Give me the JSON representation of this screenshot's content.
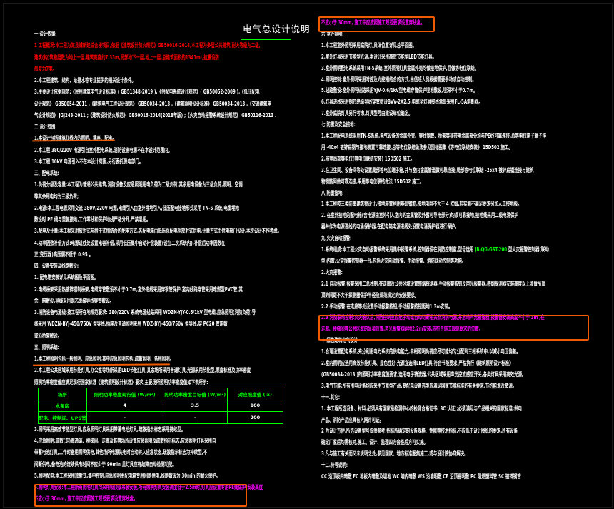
{
  "title": "电气总设计说明",
  "colors": {
    "background": "#000000",
    "text": "#ffffff",
    "highlight_red": "#ff0000",
    "highlight_magenta": "#ff00ff",
    "table_green": "#00ff00",
    "annotation_orange": "#f05a00"
  },
  "left_lines": [
    {
      "text": "一.设计依据:",
      "color": "#ffffff"
    },
    {
      "text": "1  工程概况:本工程为某县城新建综合楼项目,依据《建筑设计防火规范》GB50016-2014,本工程为多层公共建筑,耐火等级为二级,",
      "color": "#ff0000"
    },
    {
      "text": "建筑(构)筑物层数为地上一层,建筑高度约7.33m,局部地下一层,地上一层,总建筑面积约1341m²,抗震设防",
      "color": "#ff0000"
    },
    {
      "text": "烈度为7度。",
      "color": "#ff0000"
    },
    {
      "text": "2.本工程建筑、结构、给排水等专业提供的相关设计条件。",
      "color": "#ffffff"
    },
    {
      "text": "3.主要设计依据规范:《民用建筑电气设计标准》(          GB51348-2019          ),《供配电系统设计规范》(          GB50052-2009          ),《低压配电",
      "color": "#ffffff"
    },
    {
      "text": "设计规范》     GB50054-2011      ,《建筑电气工程设计规范》     GB50034-2013      ,《建筑照明设计标准》     GB50034-2013      ,《交通建筑电",
      "color": "#ffffff"
    },
    {
      "text": "气设计规范》     JGJ243-2011     ;《建筑设计防火规范》     GB50016-2014(2018年版)     ;《火灾自动报警系统设计规范》     GB50116-2013     .",
      "color": "#ffffff"
    },
    {
      "text": "二.设计范围:",
      "color": "#ffffff"
    },
    {
      "text": "1.本设计包括建筑红线内的照明、插座、配电。",
      "color": "#ffffff"
    },
    {
      "text": "2.本工程   380/220V   电源引自室外配电系统,消防设施电源不在本设计范围内。",
      "color": "#ffffff"
    },
    {
      "text": "3.本工程   10kV   电源引入不在本设计范围,另行委托供电部门。",
      "color": "#ffffff"
    },
    {
      "text": "三、配电系统:",
      "color": "#ffffff"
    },
    {
      "text": "1.负荷分级及容量:本工程为普通公共建筑,消防设备及应急照明用电负荷为二级负荷,其余用电设备为三级负荷,照明、空调",
      "color": "#ffffff"
    },
    {
      "text": "等其余用电均为三级负荷;",
      "color": "#ffffff"
    },
    {
      "text": "2.电源:本工程电源采用交流        380V/220V        电源,电缆引入由室外埋地引入,低压配电接地形式采用              TN-S     系统,电缆埋地",
      "color": "#ffffff"
    },
    {
      "text": "敷设时    PE    线与重复接地,工作零线和保护地线严格分开,严禁混用。",
      "color": "#ffffff"
    },
    {
      "text": "3.配电及计量:本工程采用放射式与树干式相结合的配电方式,各配电箱由低压总配电柜放射式供电,计量方式由供电部门设计,本次设计不作考虑。",
      "color": "#ffffff"
    },
    {
      "text": "4.功率因数补偿方式:电源进线处设置电容补偿,采用低压集中自动补偿装置(设在二次系统内),补偿后功率因数在",
      "color": "#ffffff"
    },
    {
      "text": "正(变压器)高压侧不低于                                0.95  。",
      "color": "#ffffff"
    },
    {
      "text": "四、设备安装及线路敷设:",
      "color": "#ffffff"
    },
    {
      "text": "1.   配电箱安装详见系统图及平面图。",
      "color": "#ffffff"
    },
    {
      "text": "2.电缆桥架采用热镀锌钢制桥架,电缆穿管敷设不小于0.7m,室外进线采用穿钢管保护,室内线路穿管采用难燃型PVC管,其",
      "color": "#ffffff"
    },
    {
      "text": "余、暗敷设,导线采用铜芯绝缘导线穿管敷设。",
      "color": "#ffffff"
    },
    {
      "text": "3.消防设备电源线:按工程所在地规范要求:        380/220V        系统电源线路采用      WDZN-YJY-0.6/1kV      型电缆,应急照明(消防负荷)导",
      "color": "#ffffff"
    },
    {
      "text": "线采用   WDZN-BYJ-450/750V     型导线,插座及普通照明采用     WDZ-BYJ-450/750V     型导线,穿   PC20   管暗敷",
      "color": "#ffffff"
    },
    {
      "text": "或沿桥架敷设。",
      "color": "#ffffff"
    },
    {
      "text": "五、照明系统:",
      "color": "#ffffff"
    },
    {
      "text": "1.本工程照明包括一般照明、应急照明;其中应急照明包括:疏散照明、备用照明。",
      "color": "#ffffff"
    },
    {
      "text": "2.本工程公共区域采用节能灯具,办公室等场所采用LED节能灯具,其余场所采用普通灯具,光源采用节能型,照度标准及功率密度",
      "color": "#ffffff"
    },
    {
      "text": "照明功率密度值应满足现行国家标准《建筑照明设计标准》要求,主要场所照明功率密度值如下表所示:",
      "color": "#ffffff"
    }
  ],
  "lpd_table": {
    "headers": [
      "场所",
      "照明功率密度现行值    (W/m²)",
      "照明功率密度目标值    (W/m²)",
      "对应照度值    (lx)"
    ],
    "rows": [
      [
        "水泵房",
        "4",
        "3.5",
        "100"
      ],
      [
        "配电、控制间、UPS室",
        "-",
        "-",
        "200"
      ]
    ]
  },
  "left_lines_after": [
    {
      "text": "3.照明采用高效节能型灯具,应急照明灯具采用带蓄电池灯具,疏散指示标志采用持续型。",
      "color": "#ffffff"
    },
    {
      "text": "4.应急照明:疏散(走)廊通道、楼梯间、走廊及其等场所设置应急照明及疏散指示标志,应急照明灯具采用自",
      "color": "#ffffff"
    },
    {
      "text": "带蓄电池灯具,工作时备用照明供电,其他场所电源失电时自动转入应急状态,疏散指示标志为持续型,不",
      "color": "#ffffff"
    },
    {
      "text": "间断供电,备电池的连续供电时间不应少于                               90min     且灯具应有故障自动检测功能。",
      "color": "#ffffff"
    },
    {
      "text": "5.照明配电:本工程采用放射式,集中控制,应急照明由配电箱专用回路供电,线路敷设为                       30min     的耐火保护。",
      "color": "#ffffff"
    },
    {
      "text": "6.照明灯具安装:本工程所有照明灯具均采用吸顶或吊装安装,所有照明灯具安装高度低于2.5m时,灯具应设置专用PE线保护,安装高度",
      "color": "#ff00ff"
    },
    {
      "text": "不应小于      30mm,      施工中应按照施工规范要求设置穿线盒。",
      "color": "#ff00ff"
    }
  ],
  "right_lines": [
    {
      "text": "不应小于      30mm,      施工中应按照施工规范要求设置穿线盒。",
      "color": "#ff00ff"
    },
    {
      "text": "六.室外照明:",
      "color": "#ffffff"
    },
    {
      "text": "1.本工程室外照明采用庭院灯,具体位置详见总平面图。",
      "color": "#ffffff"
    },
    {
      "text": "2.室外灯具采用节能型光源,本设计采用高效节能型LED节能灯具。",
      "color": "#ffffff"
    },
    {
      "text": "3.室外照明配电系统采用TN-S系统,室外照明灯具金属外壳均做接地保护,且做等电位联结。",
      "color": "#ffffff"
    },
    {
      "text": "4.照明控制:室外照明采用时控及光控相结合的方式,由值班人员根据需要手动或自动控制。",
      "color": "#ffffff"
    },
    {
      "text": "5.线路敷设:室外照明线路采用YJV-0.6/1kV型电缆穿管保护埋地敷设,埋深不小于0.7m。",
      "color": "#ffffff"
    },
    {
      "text": "6.灯具进线采用铜芯绝缘导线穿管敷设BVV-2X2.5,电缆至灯具接线盒处采用FL-5A熔断器。",
      "color": "#ffffff"
    },
    {
      "text": "7.室外庭院灯具另行考虑,灯具型号由建设单位确定。",
      "color": "#ffffff"
    },
    {
      "text": "七.防雷及安全接地:",
      "color": "#ffffff"
    },
    {
      "text": "1.本工程配电系统采用TN-S系统,电气设备的金属外壳、穿线钢管、桥架等非带电金属部分均与PE线可靠连接,总等电位箱子端子排",
      "color": "#ffffff"
    },
    {
      "text": "用  -40x4    镀锌扁钢与接地装置可靠连接,总等电位联结做法参见国标图集《等电位联结安装》                   15D502    施工。",
      "color": "#ffffff"
    },
    {
      "text": "2.浴室局部等电位(等电位联结安装)                 15D502     施工。",
      "color": "#ffffff"
    },
    {
      "text": "3.在卫生间、设备间等处设置局部等电位端子箱,并与室内金属管道做可靠连接,局部等电位联结                  -25x4   镀锌扁钢连接与建筑",
      "color": "#ffffff"
    },
    {
      "text": "物钢筋网做可靠连接,采用等电位联结做法                 15D502     施工。",
      "color": "#ffffff"
    },
    {
      "text": "八.防雷接地:",
      "color": "#ffffff"
    },
    {
      "text": "1    本工程按三类防雷建筑物设计,接地装置利用基础钢筋,接地电阻不大于                         4  欧姆,若实测不满足要求另加人工接地极。",
      "color": "#ffffff"
    },
    {
      "text": "2.  在室外接地的配电箱(含电源由室外引入室内的金属管及外露可导电部分)均须可靠接地,接地线采用二级电涌保护",
      "color": "#ffffff"
    },
    {
      "text": "器并作为电源进线的电涌保护器,在配电箱电源进线处设置电涌保护器进行保护。",
      "color": "#ffffff"
    },
    {
      "text": "九.火灾自动报警:",
      "color": "#ffffff"
    },
    {
      "text": "1.系统组成:本工程火灾自动报警系统采用集中报警系统,控制器设在消防控制室,型号选用                     JB-QG-GST-200           型火灾报警控制器(联动",
      "color": "#ffffff",
      "highlight": {
        "text": "JB-QG-GST-200",
        "color": "#00ff00"
      }
    },
    {
      "text": "型)内置,火灾报警控制器一台,包括火灾自动报警、手动报警、消防联动控制等功能。",
      "color": "#ffffff"
    },
    {
      "text": "2.火灾报警:",
      "color": "#ffffff"
    },
    {
      "text": "2.1  自动报警:报警采用二总线制,在走廊及公共区域设置感烟探测器,手动报警按钮及声光报警器,感烟探测器安装高度以上须做吊顶",
      "color": "#ffffff"
    },
    {
      "text": "顶的间距不大于探测器保护半径及规范规定的安装要求。",
      "color": "#ffffff"
    },
    {
      "text": "2.2  手动报警:在走廊等处设置手动报警按钮,手动报警按钮距地1.3m安装。",
      "color": "#ffffff"
    },
    {
      "text": "2.3  消防联动控制:火灾确认后,消防控制室应能手动或自动切断相关非消防电源,并启动声光报警器,报警器安装高度不小于                         3m      ,在",
      "color": "#ff00ff"
    },
    {
      "text": "走廊、楼梯间等公共区域的显著位置,声光报警器距地2.2m安装,应符合施工规范要求的位置。",
      "color": "#ff00ff"
    },
    {
      "text": "十.绿色建筑电气设计",
      "color": "#ffffff"
    },
    {
      "text": "1.合理设置配电系统,充分利用电力系统的供电能力,单相照明负荷应尽可能均匀分配到三相系统中,以减小电压偏差。",
      "color": "#ffffff"
    },
    {
      "text": "2.室内照明应选用高效节能灯具、显色性好,光源宜选择LED灯具,符合节能要求,严格执行《建筑照明设计标准》",
      "color": "#ffffff"
    },
    {
      "text": "(GB50034-2013         )的照明功率密度值要求,选用电子镇流器,公共区域采用声光控或感应开关,各类灯具采用高效光源。",
      "color": "#ffffff"
    },
    {
      "text": "3.电气节能:所有用电设备均应采用节能型产品,变配电设备选型应满足国家节能标准的有关要求,节约能源及资源。",
      "color": "#ffffff"
    },
    {
      "text": "十一.其它:",
      "color": "#ffffff"
    },
    {
      "text": "1.   本工程所选设备、材料,必须具有国家级检测中心的检测合格证书(                        3C  认证);必须满足与产品相关的国家标准;供电",
      "color": "#ffffff"
    },
    {
      "text": "产品、消防产品应具有入网许可证。",
      "color": "#ffffff"
    },
    {
      "text": "2    为设计方便,所选设备型号仅供参考,招标所确定的设备规格、性能等技术指标,不应低于设计图纸的要求,所有设备",
      "color": "#ffffff"
    },
    {
      "text": "确定厂家后均需核对,施工、设计、监理四方会签后方可实施。",
      "color": "#ffffff"
    },
    {
      "text": "3    凡与施工有关而又未说明之处,参见国家、地方标准图集施工,或与设计院协商解决。",
      "color": "#ffffff"
    },
    {
      "text": "十二.符号说明:",
      "color": "#ffffff"
    },
    {
      "text": "CC      沿顶板内暗敷      FC   地板内暗敷及埋地        WC   墙内暗敷       WS   沿墙明敷      CE   沿顶棚明敷       PC   阻燃塑料管        SC   镀锌钢管",
      "color": "#ffffff"
    }
  ]
}
